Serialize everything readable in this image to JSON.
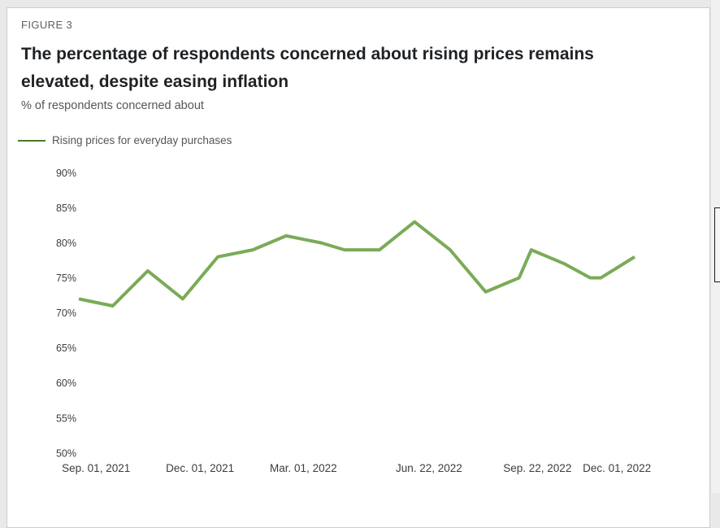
{
  "page": {
    "figure_label": "FIGURE 3",
    "title": "The percentage of respondents concerned about rising prices remains elevated, despite easing inflation",
    "title_lines": [
      "The percentage of respondents concerned about rising prices remains",
      "elevated, despite easing inflation"
    ],
    "subtitle": "% of respondents concerned about"
  },
  "legend": {
    "label": "Rising prices for everyday purchases",
    "swatch_color": "#4a7a2b"
  },
  "colors": {
    "page_background": "#e9e9e9",
    "card_background": "#ffffff",
    "line": "#7aab58",
    "legend_swatch": "#4a7a2b",
    "tick_text": "#3d3d3d"
  },
  "chart_data": {
    "type": "line",
    "title": "The percentage of respondents concerned about rising prices remains elevated, despite easing inflation",
    "subtitle": "% of respondents concerned about",
    "xlabel": "",
    "ylabel": "% of respondents concerned about",
    "ylim": [
      50,
      90
    ],
    "grid": false,
    "legend_position": "top-left",
    "y_ticks": [
      {
        "label": "90%",
        "value": 90
      },
      {
        "label": "85%",
        "value": 85
      },
      {
        "label": "80%",
        "value": 80
      },
      {
        "label": "75%",
        "value": 75
      },
      {
        "label": "70%",
        "value": 70
      },
      {
        "label": "65%",
        "value": 65
      },
      {
        "label": "60%",
        "value": 60
      },
      {
        "label": "55%",
        "value": 55
      },
      {
        "label": "50%",
        "value": 50
      }
    ],
    "x_ticks": [
      {
        "label": "Sep. 01, 2021",
        "x": 0.031
      },
      {
        "label": "Dec. 01, 2021",
        "x": 0.218
      },
      {
        "label": "Mar. 01, 2022",
        "x": 0.404
      },
      {
        "label": "Jun. 22, 2022",
        "x": 0.63
      },
      {
        "label": "Sep. 22, 2022",
        "x": 0.825
      },
      {
        "label": "Dec. 01, 2022",
        "x": 0.968
      }
    ],
    "series": [
      {
        "name": "Rising prices for everyday purchases",
        "color": "#7aab58",
        "points": [
          {
            "x": 0.0,
            "y": 72
          },
          {
            "x": 0.061,
            "y": 71
          },
          {
            "x": 0.124,
            "y": 76
          },
          {
            "x": 0.187,
            "y": 72
          },
          {
            "x": 0.25,
            "y": 78
          },
          {
            "x": 0.313,
            "y": 79
          },
          {
            "x": 0.373,
            "y": 81
          },
          {
            "x": 0.436,
            "y": 80
          },
          {
            "x": 0.478,
            "y": 79
          },
          {
            "x": 0.541,
            "y": 79
          },
          {
            "x": 0.604,
            "y": 83
          },
          {
            "x": 0.668,
            "y": 79
          },
          {
            "x": 0.732,
            "y": 73
          },
          {
            "x": 0.792,
            "y": 75
          },
          {
            "x": 0.814,
            "y": 79
          },
          {
            "x": 0.874,
            "y": 77
          },
          {
            "x": 0.92,
            "y": 75
          },
          {
            "x": 0.939,
            "y": 75
          },
          {
            "x": 1.0,
            "y": 78
          }
        ]
      }
    ]
  }
}
